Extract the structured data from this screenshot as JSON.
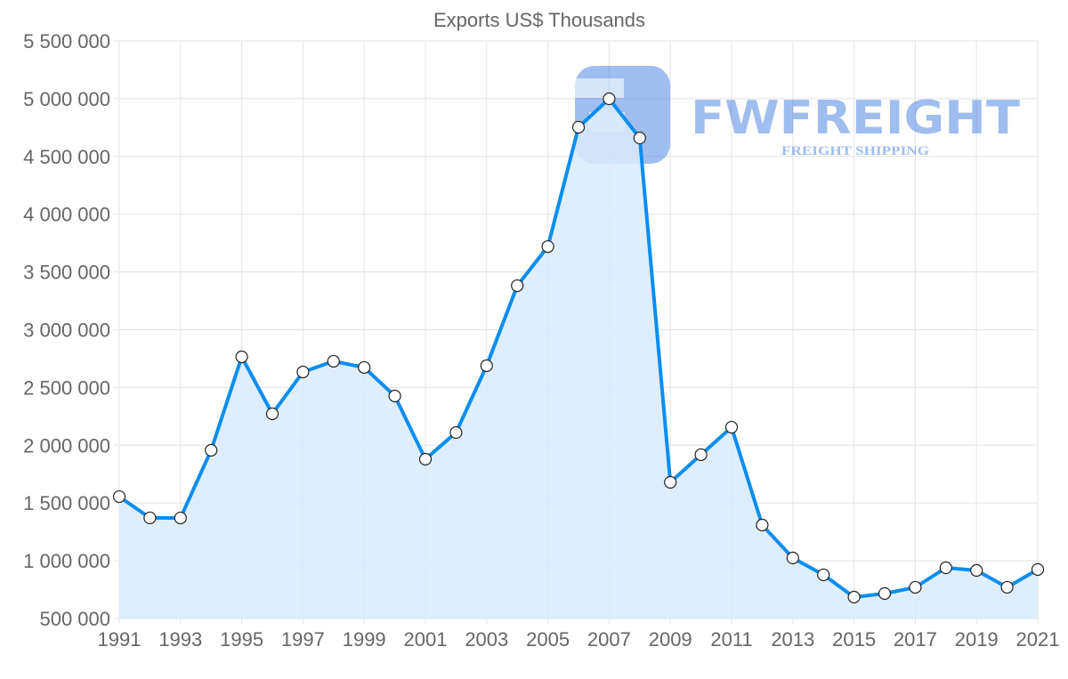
{
  "watermark": {
    "brand": "FWFREIGHT",
    "tagline": "FREIGHT SHIPPING"
  },
  "chart_data": {
    "type": "area",
    "title": "Exports US$ Thousands",
    "xlabel": "",
    "ylabel": "",
    "x": [
      1991,
      1992,
      1993,
      1994,
      1995,
      1996,
      1997,
      1998,
      1999,
      2000,
      2001,
      2002,
      2003,
      2004,
      2005,
      2006,
      2007,
      2008,
      2009,
      2010,
      2011,
      2012,
      2013,
      2014,
      2015,
      2016,
      2017,
      2018,
      2019,
      2020,
      2021
    ],
    "series": [
      {
        "name": "Exports US$ Thousands",
        "values": [
          1555000,
          1371000,
          1370000,
          1956000,
          2765000,
          2272000,
          2634000,
          2727000,
          2673000,
          2426000,
          1879000,
          2110000,
          2688000,
          3381000,
          3720000,
          4753000,
          4999000,
          4660000,
          1679000,
          1918000,
          2156000,
          1309000,
          1024000,
          878000,
          685000,
          716000,
          770000,
          939000,
          916000,
          770000,
          924000
        ],
        "color": "#0a8ef0",
        "fill": "#d9ebfb"
      }
    ],
    "xlim": [
      1991,
      2021
    ],
    "ylim": [
      500000,
      5500000
    ],
    "x_tick_labels": [
      "1991",
      "1993",
      "1995",
      "1997",
      "1999",
      "2001",
      "2003",
      "2005",
      "2007",
      "2009",
      "2011",
      "2013",
      "2015",
      "2017",
      "2019",
      "2021"
    ],
    "y_tick_labels": [
      "500 000",
      "1 000 000",
      "1 500 000",
      "2 000 000",
      "2 500 000",
      "3 000 000",
      "3 500 000",
      "4 000 000",
      "4 500 000",
      "5 000 000",
      "5 500 000"
    ],
    "grid": true,
    "legend": "none"
  }
}
